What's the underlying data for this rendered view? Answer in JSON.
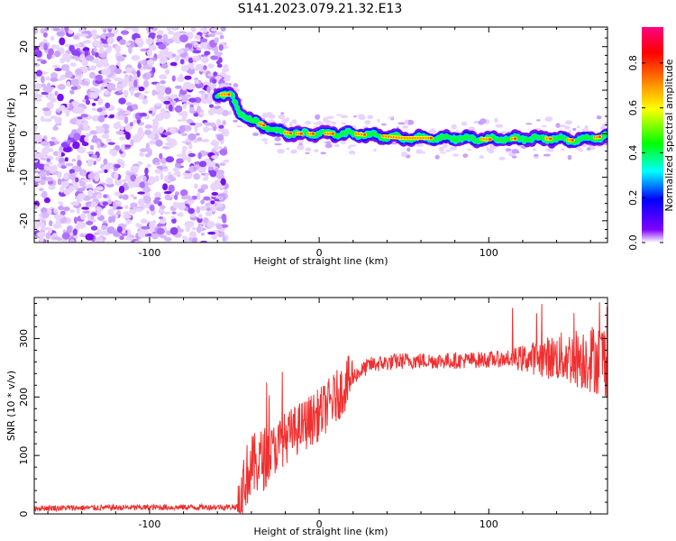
{
  "title": "S141.2023.079.21.32.E13",
  "chart_data": [
    {
      "type": "heatmap",
      "xlabel": "Height of straight line (km)",
      "ylabel": "Frequency (Hz)",
      "xlim": [
        -168,
        170
      ],
      "ylim": [
        -25,
        24.5
      ],
      "x_ticks": [
        -100,
        0,
        100
      ],
      "y_ticks": [
        -20,
        -10,
        0,
        10,
        20
      ],
      "noise_region_x": [
        -168,
        -58
      ],
      "signal_ridge": [
        {
          "x": -60,
          "y": 9
        },
        {
          "x": -52,
          "y": 9
        },
        {
          "x": -47,
          "y": 5
        },
        {
          "x": -40,
          "y": 3
        },
        {
          "x": -33,
          "y": 2
        },
        {
          "x": -25,
          "y": 0.5
        },
        {
          "x": -15,
          "y": 0
        },
        {
          "x": 0,
          "y": 0
        },
        {
          "x": 20,
          "y": 0
        },
        {
          "x": 50,
          "y": -1
        },
        {
          "x": 80,
          "y": -1
        },
        {
          "x": 100,
          "y": -1.3
        },
        {
          "x": 130,
          "y": -1
        },
        {
          "x": 150,
          "y": -1.5
        },
        {
          "x": 170,
          "y": -0.5
        }
      ],
      "colorbar": {
        "label": "Normalized spectral amplitude",
        "range": [
          0,
          0.96
        ],
        "ticks": [
          "0.0",
          "0.2",
          "0.4",
          "0.6",
          "0.8"
        ],
        "tick_values": [
          0,
          0.2,
          0.4,
          0.6,
          0.8
        ],
        "colors": [
          "#ffffff",
          "#8000ff",
          "#0000ff",
          "#00ffff",
          "#00ff00",
          "#ffff00",
          "#ff8000",
          "#ff0000",
          "#ff0080"
        ]
      }
    },
    {
      "type": "line",
      "xlabel": "Height of straight line (km)",
      "ylabel": "SNR (10 * v/v)",
      "xlim": [
        -168,
        170
      ],
      "ylim": [
        0,
        370
      ],
      "x_ticks": [
        -100,
        0,
        100
      ],
      "y_ticks": [
        0,
        100,
        200,
        300
      ],
      "series_color": "#f03030",
      "trend": [
        {
          "x": -168,
          "y": 10
        },
        {
          "x": -48,
          "y": 12
        },
        {
          "x": -44,
          "y": 60
        },
        {
          "x": -40,
          "y": 80
        },
        {
          "x": -30,
          "y": 100
        },
        {
          "x": -20,
          "y": 130
        },
        {
          "x": -10,
          "y": 150
        },
        {
          "x": 0,
          "y": 170
        },
        {
          "x": 10,
          "y": 200
        },
        {
          "x": 20,
          "y": 235
        },
        {
          "x": 30,
          "y": 255
        },
        {
          "x": 50,
          "y": 262
        },
        {
          "x": 80,
          "y": 262
        },
        {
          "x": 110,
          "y": 265
        },
        {
          "x": 140,
          "y": 268
        },
        {
          "x": 170,
          "y": 265
        }
      ]
    }
  ]
}
